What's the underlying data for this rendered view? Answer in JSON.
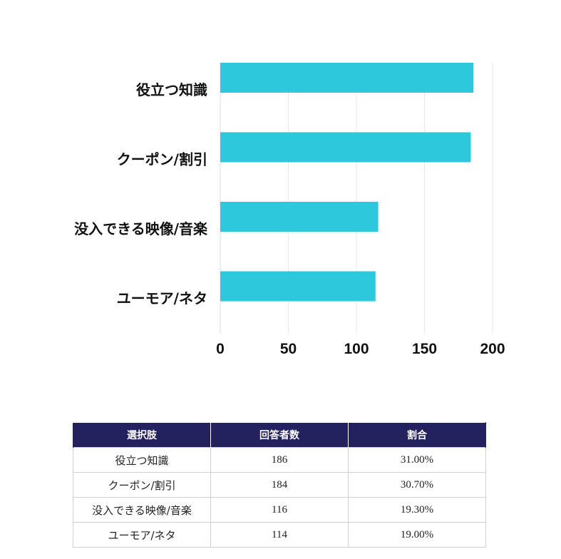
{
  "chart_data": {
    "type": "bar",
    "orientation": "horizontal",
    "categories": [
      "役立つ知識",
      "クーポン/割引",
      "没入できる映像/音楽",
      "ユーモア/ネタ"
    ],
    "values": [
      186,
      184,
      116,
      114
    ],
    "xlim": [
      0,
      200
    ],
    "xticks": [
      0,
      50,
      100,
      150,
      200
    ],
    "grid": true,
    "bar_color": "#2ec8dc"
  },
  "table": {
    "headers": [
      "選択肢",
      "回答者数",
      "割合"
    ],
    "rows": [
      {
        "choice": "役立つ知識",
        "count": "186",
        "ratio": "31.00%"
      },
      {
        "choice": "クーポン/割引",
        "count": "184",
        "ratio": "30.70%"
      },
      {
        "choice": "没入できる映像/音楽",
        "count": "116",
        "ratio": "19.30%"
      },
      {
        "choice": "ユーモア/ネタ",
        "count": "114",
        "ratio": "19.00%"
      }
    ],
    "header_color": "#23215e"
  }
}
